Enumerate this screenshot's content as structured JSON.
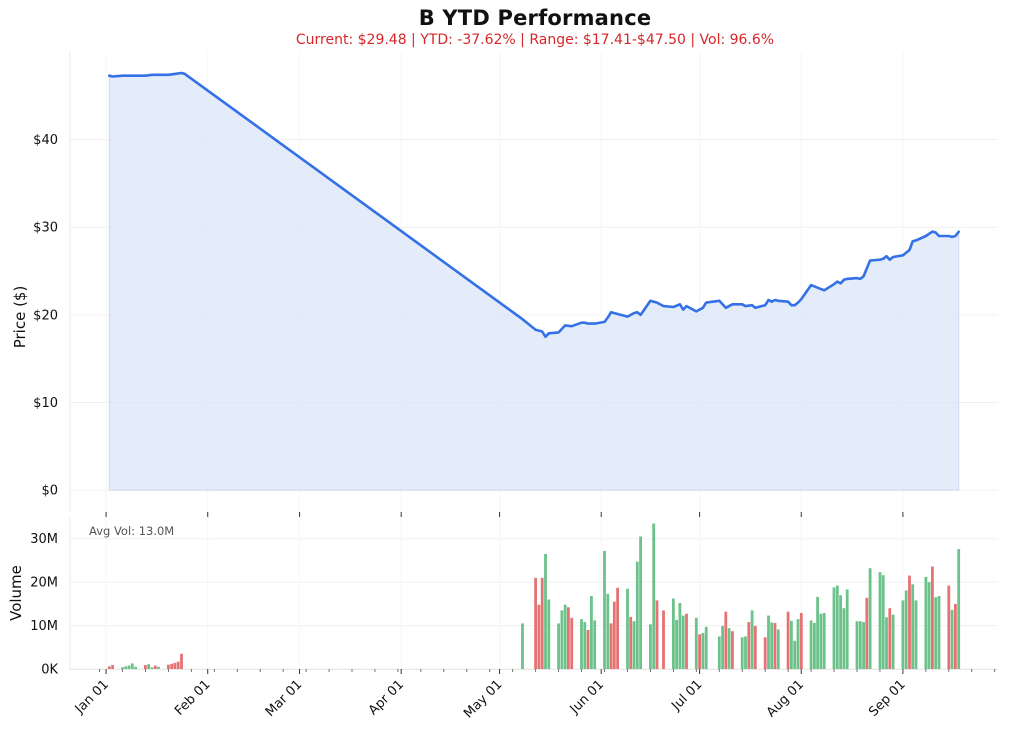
{
  "header": {
    "title": "B YTD Performance",
    "subtitle": "Current: $29.48  |  YTD: -37.62%  |  Range: $17.41-$47.50  |  Vol: 96.6%"
  },
  "colors": {
    "price_line": "#3571e6",
    "price_fill": "#dbe6f8",
    "volume_up": "#6cc28a",
    "volume_down": "#e67374",
    "subtitle": "#d62728",
    "grid": "#f0f0f0"
  },
  "chart_data": [
    {
      "type": "area",
      "title": "B YTD Performance",
      "ylabel": "Price ($)",
      "ylim": [
        -2.5,
        50
      ],
      "yticks": [
        0,
        10,
        20,
        30,
        40
      ],
      "ytick_labels": [
        "$0",
        "$10",
        "$20",
        "$30",
        "$40"
      ],
      "xlim": [
        "2024-12-21",
        "2025-09-30"
      ],
      "grid": true,
      "series": [
        {
          "x": [
            "2025-01-02",
            "2025-01-03",
            "2025-01-06",
            "2025-01-08",
            "2025-01-10",
            "2025-01-13",
            "2025-01-15",
            "2025-01-17",
            "2025-01-20",
            "2025-01-22",
            "2025-01-24",
            "2025-01-25",
            "2025-05-08",
            "2025-05-12",
            "2025-05-14",
            "2025-05-15",
            "2025-05-16",
            "2025-05-19",
            "2025-05-21",
            "2025-05-23",
            "2025-05-26",
            "2025-05-27",
            "2025-05-28",
            "2025-05-30",
            "2025-06-02",
            "2025-06-03",
            "2025-06-04",
            "2025-06-06",
            "2025-06-09",
            "2025-06-11",
            "2025-06-12",
            "2025-06-13",
            "2025-06-16",
            "2025-06-18",
            "2025-06-20",
            "2025-06-23",
            "2025-06-25",
            "2025-06-26",
            "2025-06-27",
            "2025-06-30",
            "2025-07-02",
            "2025-07-03",
            "2025-07-07",
            "2025-07-09",
            "2025-07-11",
            "2025-07-14",
            "2025-07-15",
            "2025-07-17",
            "2025-07-18",
            "2025-07-21",
            "2025-07-22",
            "2025-07-23",
            "2025-07-24",
            "2025-07-25",
            "2025-07-28",
            "2025-07-29",
            "2025-07-30",
            "2025-07-31",
            "2025-08-01",
            "2025-08-04",
            "2025-08-06",
            "2025-08-08",
            "2025-08-11",
            "2025-08-12",
            "2025-08-13",
            "2025-08-14",
            "2025-08-15",
            "2025-08-18",
            "2025-08-19",
            "2025-08-20",
            "2025-08-21",
            "2025-08-22",
            "2025-08-25",
            "2025-08-26",
            "2025-08-27",
            "2025-08-28",
            "2025-08-29",
            "2025-09-01",
            "2025-09-03",
            "2025-09-04",
            "2025-09-05",
            "2025-09-08",
            "2025-09-10",
            "2025-09-11",
            "2025-09-12",
            "2025-09-15",
            "2025-09-16",
            "2025-09-17",
            "2025-09-18"
          ],
          "values": [
            47.3,
            47.2,
            47.3,
            47.3,
            47.3,
            47.3,
            47.4,
            47.4,
            47.4,
            47.5,
            47.6,
            47.5,
            19.5,
            18.3,
            18.1,
            17.5,
            17.9,
            18.0,
            18.8,
            18.7,
            19.1,
            19.1,
            19.0,
            19.0,
            19.2,
            19.7,
            20.3,
            20.1,
            19.8,
            20.2,
            20.3,
            20.0,
            21.6,
            21.4,
            21.0,
            20.9,
            21.2,
            20.6,
            21.0,
            20.4,
            20.8,
            21.4,
            21.6,
            20.8,
            21.2,
            21.2,
            21.0,
            21.1,
            20.8,
            21.1,
            21.7,
            21.5,
            21.7,
            21.6,
            21.5,
            21.1,
            21.1,
            21.4,
            21.8,
            23.4,
            23.1,
            22.8,
            23.5,
            23.8,
            23.6,
            24.0,
            24.1,
            24.2,
            24.1,
            24.4,
            25.3,
            26.2,
            26.3,
            26.4,
            26.7,
            26.3,
            26.6,
            26.8,
            27.4,
            28.4,
            28.5,
            29.0,
            29.5,
            29.4,
            29.0,
            29.0,
            28.9,
            29.0,
            29.48
          ]
        }
      ]
    },
    {
      "type": "bar",
      "ylabel": "Volume",
      "ylim": [
        0,
        35
      ],
      "yticks": [
        0,
        10,
        20,
        30
      ],
      "ytick_labels": [
        "0K",
        "10M",
        "20M",
        "30M"
      ],
      "xticks": [
        "2025-01-01",
        "2025-02-01",
        "2025-03-01",
        "2025-04-01",
        "2025-05-01",
        "2025-06-01",
        "2025-07-01",
        "2025-08-01",
        "2025-09-01"
      ],
      "xtick_labels": [
        "Jan 01",
        "Feb 01",
        "Mar 01",
        "Apr 01",
        "May 01",
        "Jun 01",
        "Jul 01",
        "Aug 01",
        "Sep 01"
      ],
      "annotation": "Avg Vol: 13.0M",
      "unit": "millions",
      "series": [
        {
          "x": [
            "2025-01-02",
            "2025-01-03",
            "2025-01-06",
            "2025-01-07",
            "2025-01-08",
            "2025-01-09",
            "2025-01-10",
            "2025-01-13",
            "2025-01-14",
            "2025-01-15",
            "2025-01-16",
            "2025-01-17",
            "2025-01-20",
            "2025-01-21",
            "2025-01-22",
            "2025-01-23",
            "2025-01-24",
            "2025-05-08",
            "2025-05-12",
            "2025-05-13",
            "2025-05-14",
            "2025-05-15",
            "2025-05-16",
            "2025-05-19",
            "2025-05-20",
            "2025-05-21",
            "2025-05-22",
            "2025-05-23",
            "2025-05-26",
            "2025-05-27",
            "2025-05-28",
            "2025-05-29",
            "2025-05-30",
            "2025-06-02",
            "2025-06-03",
            "2025-06-04",
            "2025-06-05",
            "2025-06-06",
            "2025-06-09",
            "2025-06-10",
            "2025-06-11",
            "2025-06-12",
            "2025-06-13",
            "2025-06-16",
            "2025-06-17",
            "2025-06-18",
            "2025-06-20",
            "2025-06-23",
            "2025-06-24",
            "2025-06-25",
            "2025-06-26",
            "2025-06-27",
            "2025-06-30",
            "2025-07-01",
            "2025-07-02",
            "2025-07-03",
            "2025-07-07",
            "2025-07-08",
            "2025-07-09",
            "2025-07-10",
            "2025-07-11",
            "2025-07-14",
            "2025-07-15",
            "2025-07-16",
            "2025-07-17",
            "2025-07-18",
            "2025-07-21",
            "2025-07-22",
            "2025-07-23",
            "2025-07-24",
            "2025-07-25",
            "2025-07-28",
            "2025-07-29",
            "2025-07-30",
            "2025-07-31",
            "2025-08-01",
            "2025-08-04",
            "2025-08-05",
            "2025-08-06",
            "2025-08-07",
            "2025-08-08",
            "2025-08-11",
            "2025-08-12",
            "2025-08-13",
            "2025-08-14",
            "2025-08-15",
            "2025-08-18",
            "2025-08-19",
            "2025-08-20",
            "2025-08-21",
            "2025-08-22",
            "2025-08-25",
            "2025-08-26",
            "2025-08-27",
            "2025-08-28",
            "2025-08-29",
            "2025-09-01",
            "2025-09-02",
            "2025-09-03",
            "2025-09-04",
            "2025-09-05",
            "2025-09-08",
            "2025-09-09",
            "2025-09-10",
            "2025-09-11",
            "2025-09-12",
            "2025-09-15",
            "2025-09-16",
            "2025-09-17",
            "2025-09-18"
          ],
          "values": [
            0.6,
            0.9,
            0.4,
            0.6,
            0.8,
            1.3,
            0.5,
            0.9,
            1.1,
            0.4,
            0.8,
            0.5,
            1.0,
            1.2,
            1.4,
            1.7,
            3.5,
            10.5,
            21.0,
            14.8,
            21.0,
            26.5,
            16.0,
            10.5,
            13.5,
            14.8,
            14.2,
            11.8,
            11.5,
            10.8,
            9.0,
            16.8,
            11.2,
            27.2,
            17.3,
            10.5,
            15.5,
            18.7,
            18.5,
            12.0,
            11.0,
            24.7,
            30.5,
            10.3,
            33.5,
            15.8,
            13.5,
            16.2,
            11.3,
            15.2,
            12.3,
            12.7,
            11.8,
            8.0,
            8.3,
            9.7,
            7.5,
            9.9,
            13.2,
            9.4,
            8.7,
            7.3,
            7.5,
            10.8,
            13.5,
            9.9,
            7.3,
            12.3,
            10.7,
            10.6,
            9.1,
            13.2,
            11.1,
            6.5,
            11.5,
            12.9,
            11.2,
            10.6,
            16.6,
            12.7,
            12.9,
            18.8,
            19.2,
            17.0,
            14.0,
            18.3,
            11.0,
            11.0,
            10.8,
            16.4,
            23.2,
            22.3,
            21.6,
            11.9,
            14.0,
            12.5,
            15.8,
            18.1,
            21.5,
            19.5,
            15.8,
            21.2,
            20.0,
            23.6,
            16.5,
            16.8,
            19.2,
            13.6,
            15.0,
            27.6
          ],
          "direction": [
            "down",
            "down",
            "up",
            "up",
            "up",
            "up",
            "up",
            "down",
            "up",
            "up",
            "down",
            "up",
            "down",
            "down",
            "down",
            "down",
            "down",
            "up",
            "down",
            "down",
            "down",
            "up",
            "up",
            "up",
            "up",
            "up",
            "down",
            "down",
            "up",
            "up",
            "down",
            "up",
            "up",
            "up",
            "up",
            "down",
            "down",
            "down",
            "up",
            "down",
            "up",
            "up",
            "up",
            "up",
            "up",
            "down",
            "down",
            "up",
            "up",
            "up",
            "up",
            "down",
            "up",
            "down",
            "up",
            "up",
            "up",
            "up",
            "down",
            "up",
            "down",
            "up",
            "up",
            "down",
            "up",
            "down",
            "down",
            "up",
            "up",
            "down",
            "up",
            "down",
            "up",
            "up",
            "up",
            "down",
            "up",
            "up",
            "up",
            "up",
            "up",
            "up",
            "up",
            "up",
            "up",
            "up",
            "up",
            "up",
            "up",
            "down",
            "up",
            "up",
            "up",
            "up",
            "down",
            "up",
            "up",
            "up",
            "down",
            "up",
            "up",
            "up",
            "up",
            "down",
            "up",
            "up",
            "down",
            "up",
            "down",
            "up"
          ]
        }
      ]
    }
  ]
}
